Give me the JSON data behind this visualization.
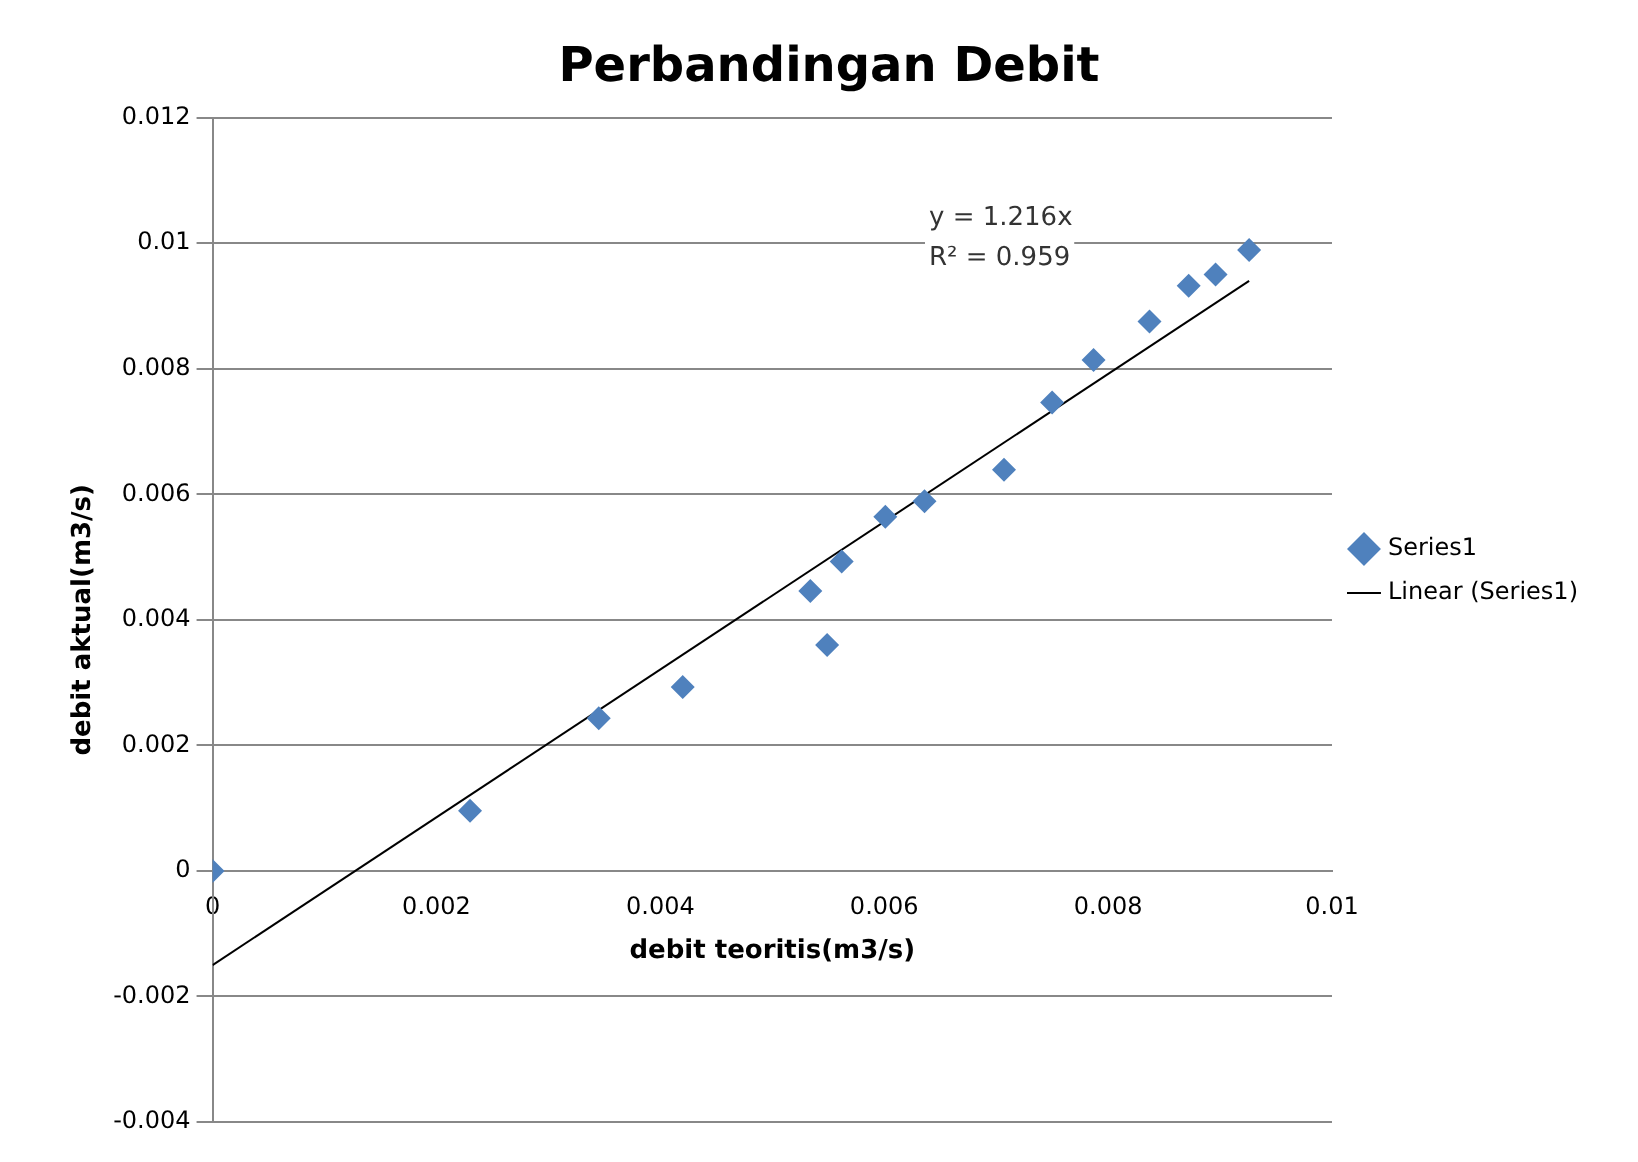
{
  "chart_data": {
    "type": "scatter",
    "title": "Perbandingan Debit",
    "xlabel": "debit teoritis(m3/s)",
    "ylabel": "debit aktual(m3/s)",
    "xlim": [
      0,
      0.01
    ],
    "xticks": [
      0,
      0.002,
      0.004,
      0.006,
      0.008,
      0.01
    ],
    "ylim": [
      -0.004,
      0.012
    ],
    "yticks": [
      -0.004,
      -0.002,
      0,
      0.002,
      0.004,
      0.006,
      0.008,
      0.01,
      0.012
    ],
    "grid": "y",
    "legend": "right",
    "marker": "diamond",
    "series": [
      {
        "name": "Series1",
        "color": "#4f81bd",
        "x": [
          0,
          0.0023,
          0.00345,
          0.0042,
          0.00534,
          0.00549,
          0.00562,
          0.00601,
          0.00636,
          0.00707,
          0.0075,
          0.00787,
          0.00837,
          0.00872,
          0.00896,
          0.00926
        ],
        "values": [
          0,
          0.00096,
          0.00243,
          0.00293,
          0.00446,
          0.0036,
          0.00493,
          0.00564,
          0.00589,
          0.00639,
          0.00746,
          0.00814,
          0.00875,
          0.00932,
          0.0095,
          0.00989
        ]
      },
      {
        "name": "Linear (Series1)",
        "type": "line",
        "color": "#000000",
        "marker": "none",
        "x": [
          0,
          0.00926
        ],
        "values": [
          -0.0015,
          0.0094
        ]
      }
    ],
    "annotations": [
      "y = 1.216x",
      "R² = 0.959"
    ]
  }
}
